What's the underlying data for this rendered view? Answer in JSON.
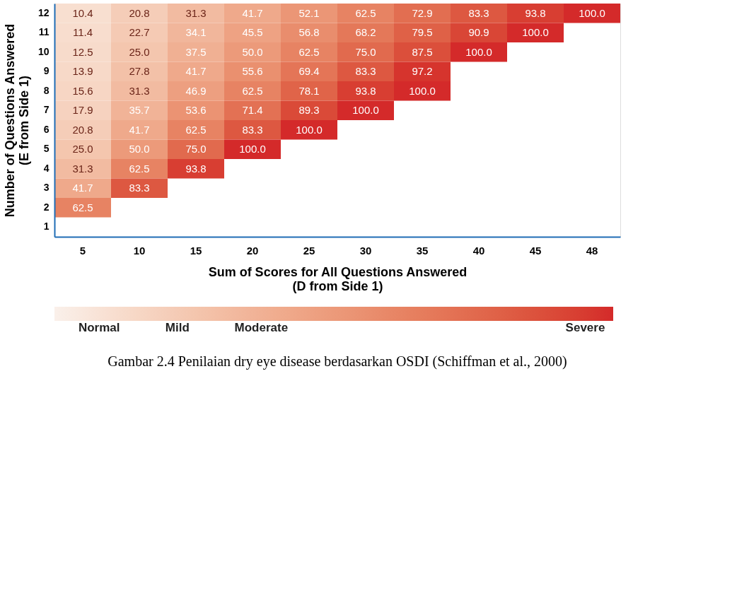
{
  "chart_data": {
    "type": "heatmap",
    "xlabel": "Sum of Scores for All Questions Answered\n(D from Side 1)",
    "ylabel": "Number of Questions Answered\n(E from Side 1)",
    "categories": [
      "5",
      "10",
      "15",
      "20",
      "25",
      "30",
      "35",
      "40",
      "45",
      "48"
    ],
    "y_categories": [
      "12",
      "11",
      "10",
      "9",
      "8",
      "7",
      "6",
      "5",
      "4",
      "3",
      "2",
      "1"
    ],
    "cells": [
      [
        10.4,
        20.8,
        31.3,
        41.7,
        52.1,
        62.5,
        72.9,
        83.3,
        93.8,
        100.0
      ],
      [
        11.4,
        22.7,
        34.1,
        45.5,
        56.8,
        68.2,
        79.5,
        90.9,
        100.0,
        null
      ],
      [
        12.5,
        25.0,
        37.5,
        50.0,
        62.5,
        75.0,
        87.5,
        100.0,
        null,
        null
      ],
      [
        13.9,
        27.8,
        41.7,
        55.6,
        69.4,
        83.3,
        97.2,
        null,
        null,
        null
      ],
      [
        15.6,
        31.3,
        46.9,
        62.5,
        78.1,
        93.8,
        100.0,
        null,
        null,
        null
      ],
      [
        17.9,
        35.7,
        53.6,
        71.4,
        89.3,
        100.0,
        null,
        null,
        null,
        null
      ],
      [
        20.8,
        41.7,
        62.5,
        83.3,
        100.0,
        null,
        null,
        null,
        null,
        null
      ],
      [
        25.0,
        50.0,
        75.0,
        100.0,
        null,
        null,
        null,
        null,
        null,
        null
      ],
      [
        31.3,
        62.5,
        93.8,
        null,
        null,
        null,
        null,
        null,
        null,
        null
      ],
      [
        41.7,
        83.3,
        null,
        null,
        null,
        null,
        null,
        null,
        null,
        null
      ],
      [
        62.5,
        null,
        null,
        null,
        null,
        null,
        null,
        null,
        null,
        null
      ],
      [
        null,
        null,
        null,
        null,
        null,
        null,
        null,
        null,
        null,
        null
      ]
    ],
    "cell_labels": [
      [
        "10.4",
        "20.8",
        "31.3",
        "41.7",
        "52.1",
        "62.5",
        "72.9",
        "83.3",
        "93.8",
        "100.0"
      ],
      [
        "11.4",
        "22.7",
        "34.1",
        "45.5",
        "56.8",
        "68.2",
        "79.5",
        "90.9",
        "100.0",
        null
      ],
      [
        "12.5",
        "25.0",
        "37.5",
        "50.0",
        "62.5",
        "75.0",
        "87.5",
        "100.0",
        null,
        null
      ],
      [
        "13.9",
        "27.8",
        "41.7",
        "55.6",
        "69.4",
        "83.3",
        "97.2",
        null,
        null,
        null
      ],
      [
        "15.6",
        "31.3",
        "46.9",
        "62.5",
        "78.1",
        "93.8",
        "100.0",
        null,
        null,
        null
      ],
      [
        "17.9",
        "35.7",
        "53.6",
        "71.4",
        "89.3",
        "100.0",
        null,
        null,
        null,
        null
      ],
      [
        "20.8",
        "41.7",
        "62.5",
        "83.3",
        "100.0",
        null,
        null,
        null,
        null,
        null
      ],
      [
        "25.0",
        "50.0",
        "75.0",
        "100.0",
        null,
        null,
        null,
        null,
        null,
        null
      ],
      [
        "31.3",
        "62.5",
        "93.8",
        null,
        null,
        null,
        null,
        null,
        null,
        null
      ],
      [
        "41.7",
        "83.3",
        null,
        null,
        null,
        null,
        null,
        null,
        null,
        null
      ],
      [
        "62.5",
        null,
        null,
        null,
        null,
        null,
        null,
        null,
        null,
        null
      ],
      [
        null,
        null,
        null,
        null,
        null,
        null,
        null,
        null,
        null,
        null
      ]
    ],
    "clim": [
      0,
      100
    ],
    "cticks": [
      {
        "value": 8,
        "label": "Normal"
      },
      {
        "value": 22,
        "label": "Mild"
      },
      {
        "value": 37,
        "label": "Moderate"
      },
      {
        "value": 95,
        "label": "Severe"
      }
    ],
    "colors": [
      "#faf0ea",
      "#d42a2a"
    ],
    "annotations": [
      "Gambar 2.4 Penilaian dry eye disease berdasarkan OSDI (Schiffman et al., 2000)"
    ]
  }
}
